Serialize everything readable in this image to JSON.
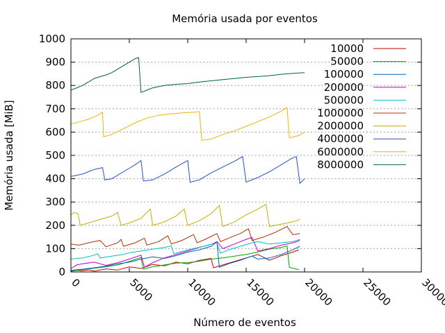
{
  "chart_data": {
    "type": "line",
    "title": "Memória usada por eventos",
    "xlabel": "Número de eventos",
    "ylabel": "Memória usada [MiB]",
    "xlim": [
      0,
      30000
    ],
    "ylim": [
      0,
      1000
    ],
    "xticks": [
      0,
      5000,
      10000,
      15000,
      20000,
      25000,
      30000
    ],
    "yticks": [
      0,
      100,
      200,
      300,
      400,
      500,
      600,
      700,
      800,
      900,
      1000
    ],
    "grid": "horizontal dotted",
    "legend_position": "top-right",
    "series": [
      {
        "name": "10000",
        "color": "#c00000",
        "points": [
          [
            0,
            3
          ],
          [
            500,
            7
          ],
          [
            1000,
            5
          ],
          [
            1500,
            9
          ],
          [
            2000,
            4
          ],
          [
            3000,
            13
          ],
          [
            4000,
            8
          ],
          [
            5000,
            22
          ],
          [
            6000,
            15
          ],
          [
            7000,
            32
          ],
          [
            8000,
            26
          ],
          [
            9000,
            42
          ],
          [
            10000,
            35
          ],
          [
            11000,
            50
          ],
          [
            12000,
            58
          ],
          [
            12200,
            18
          ],
          [
            13000,
            30
          ],
          [
            14000,
            45
          ],
          [
            15000,
            60
          ],
          [
            16000,
            75
          ],
          [
            17000,
            50
          ],
          [
            18000,
            70
          ],
          [
            19000,
            85
          ],
          [
            19500,
            95
          ]
        ]
      },
      {
        "name": "50000",
        "color": "#00a000",
        "points": [
          [
            0,
            4
          ],
          [
            1000,
            10
          ],
          [
            2000,
            16
          ],
          [
            3000,
            22
          ],
          [
            4000,
            30
          ],
          [
            5000,
            45
          ],
          [
            6000,
            62
          ],
          [
            6200,
            12
          ],
          [
            7000,
            22
          ],
          [
            8000,
            30
          ],
          [
            9000,
            38
          ],
          [
            10000,
            40
          ],
          [
            11000,
            46
          ],
          [
            12000,
            55
          ],
          [
            13000,
            60
          ],
          [
            14000,
            68
          ],
          [
            15000,
            75
          ],
          [
            16000,
            85
          ],
          [
            17000,
            98
          ],
          [
            18000,
            105
          ],
          [
            18500,
            112
          ],
          [
            18700,
            20
          ],
          [
            19500,
            10
          ]
        ]
      },
      {
        "name": "100000",
        "color": "#0060c0",
        "points": [
          [
            0,
            7
          ],
          [
            1000,
            12
          ],
          [
            2000,
            18
          ],
          [
            3000,
            25
          ],
          [
            4000,
            35
          ],
          [
            5000,
            42
          ],
          [
            6000,
            55
          ],
          [
            7000,
            65
          ],
          [
            8000,
            58
          ],
          [
            9000,
            70
          ],
          [
            10000,
            85
          ],
          [
            11000,
            95
          ],
          [
            12000,
            110
          ],
          [
            12500,
            128
          ],
          [
            12700,
            20
          ],
          [
            13500,
            35
          ],
          [
            14500,
            50
          ],
          [
            15500,
            68
          ],
          [
            16000,
            55
          ],
          [
            17000,
            60
          ],
          [
            18000,
            75
          ],
          [
            19000,
            95
          ],
          [
            19600,
            110
          ]
        ]
      },
      {
        "name": "200000",
        "color": "#c000c0",
        "points": [
          [
            0,
            15
          ],
          [
            500,
            30
          ],
          [
            1000,
            35
          ],
          [
            2000,
            42
          ],
          [
            3000,
            28
          ],
          [
            4000,
            40
          ],
          [
            5000,
            55
          ],
          [
            6000,
            72
          ],
          [
            6300,
            20
          ],
          [
            7000,
            40
          ],
          [
            8000,
            60
          ],
          [
            9000,
            75
          ],
          [
            10000,
            90
          ],
          [
            11000,
            105
          ],
          [
            12000,
            118
          ],
          [
            12500,
            130
          ],
          [
            13000,
            100
          ],
          [
            14000,
            120
          ],
          [
            15000,
            140
          ],
          [
            15500,
            148
          ],
          [
            16000,
            90
          ],
          [
            17000,
            100
          ],
          [
            18000,
            115
          ],
          [
            19000,
            125
          ],
          [
            19600,
            135
          ]
        ]
      },
      {
        "name": "500000",
        "color": "#00c0c0",
        "points": [
          [
            0,
            55
          ],
          [
            1000,
            60
          ],
          [
            2000,
            72
          ],
          [
            2300,
            78
          ],
          [
            2500,
            60
          ],
          [
            3500,
            68
          ],
          [
            4500,
            75
          ],
          [
            5000,
            82
          ],
          [
            6000,
            90
          ],
          [
            7000,
            98
          ],
          [
            8000,
            105
          ],
          [
            8600,
            112
          ],
          [
            8800,
            78
          ],
          [
            9500,
            88
          ],
          [
            10500,
            100
          ],
          [
            11500,
            112
          ],
          [
            12500,
            125
          ],
          [
            12800,
            80
          ],
          [
            13500,
            95
          ],
          [
            14500,
            110
          ],
          [
            15500,
            125
          ],
          [
            16000,
            130
          ],
          [
            17000,
            120
          ],
          [
            18000,
            125
          ],
          [
            19000,
            130
          ],
          [
            19600,
            140
          ]
        ]
      },
      {
        "name": "1000000",
        "color": "#b03000",
        "points": [
          [
            0,
            120
          ],
          [
            700,
            115
          ],
          [
            1500,
            125
          ],
          [
            2000,
            130
          ],
          [
            2500,
            135
          ],
          [
            3000,
            108
          ],
          [
            4000,
            125
          ],
          [
            4300,
            140
          ],
          [
            4500,
            110
          ],
          [
            5500,
            125
          ],
          [
            6300,
            145
          ],
          [
            6500,
            115
          ],
          [
            7500,
            130
          ],
          [
            8300,
            155
          ],
          [
            8600,
            120
          ],
          [
            9500,
            135
          ],
          [
            10500,
            160
          ],
          [
            10800,
            125
          ],
          [
            11500,
            140
          ],
          [
            12500,
            165
          ],
          [
            12800,
            130
          ],
          [
            13500,
            145
          ],
          [
            14500,
            165
          ],
          [
            15200,
            185
          ],
          [
            15500,
            135
          ],
          [
            16500,
            150
          ],
          [
            17500,
            170
          ],
          [
            18500,
            195
          ],
          [
            19000,
            160
          ],
          [
            19600,
            165
          ]
        ]
      },
      {
        "name": "2000000",
        "color": "#c0b000",
        "points": [
          [
            0,
            245
          ],
          [
            300,
            255
          ],
          [
            600,
            250
          ],
          [
            800,
            200
          ],
          [
            1500,
            210
          ],
          [
            2500,
            225
          ],
          [
            3500,
            240
          ],
          [
            4000,
            255
          ],
          [
            4300,
            200
          ],
          [
            5000,
            210
          ],
          [
            6000,
            230
          ],
          [
            6800,
            270
          ],
          [
            7000,
            200
          ],
          [
            8000,
            215
          ],
          [
            9000,
            240
          ],
          [
            9700,
            270
          ],
          [
            10000,
            200
          ],
          [
            11000,
            220
          ],
          [
            12000,
            250
          ],
          [
            12700,
            285
          ],
          [
            13000,
            195
          ],
          [
            14000,
            215
          ],
          [
            15000,
            245
          ],
          [
            16000,
            270
          ],
          [
            16700,
            290
          ],
          [
            17000,
            195
          ],
          [
            18000,
            205
          ],
          [
            19000,
            215
          ],
          [
            19600,
            225
          ]
        ]
      },
      {
        "name": "4000000",
        "color": "#2050c0",
        "points": [
          [
            0,
            410
          ],
          [
            500,
            415
          ],
          [
            1000,
            420
          ],
          [
            1500,
            430
          ],
          [
            2000,
            440
          ],
          [
            2500,
            445
          ],
          [
            2700,
            448
          ],
          [
            2900,
            395
          ],
          [
            3500,
            400
          ],
          [
            4000,
            415
          ],
          [
            4500,
            430
          ],
          [
            5000,
            445
          ],
          [
            5500,
            460
          ],
          [
            6000,
            478
          ],
          [
            6200,
            390
          ],
          [
            7000,
            395
          ],
          [
            8000,
            420
          ],
          [
            9000,
            450
          ],
          [
            10000,
            478
          ],
          [
            10200,
            385
          ],
          [
            11000,
            395
          ],
          [
            12000,
            425
          ],
          [
            13000,
            450
          ],
          [
            14000,
            475
          ],
          [
            14700,
            495
          ],
          [
            15000,
            385
          ],
          [
            16000,
            405
          ],
          [
            17000,
            430
          ],
          [
            18000,
            460
          ],
          [
            19000,
            490
          ],
          [
            19300,
            495
          ],
          [
            19600,
            380
          ],
          [
            20000,
            400
          ]
        ]
      },
      {
        "name": "6000000",
        "color": "#e8b800",
        "points": [
          [
            0,
            635
          ],
          [
            800,
            645
          ],
          [
            1500,
            655
          ],
          [
            2200,
            670
          ],
          [
            2700,
            685
          ],
          [
            2800,
            580
          ],
          [
            3500,
            590
          ],
          [
            4500,
            615
          ],
          [
            5500,
            640
          ],
          [
            6500,
            660
          ],
          [
            7500,
            672
          ],
          [
            8500,
            678
          ],
          [
            9500,
            682
          ],
          [
            10500,
            685
          ],
          [
            11000,
            688
          ],
          [
            11200,
            565
          ],
          [
            12000,
            570
          ],
          [
            13000,
            590
          ],
          [
            14000,
            605
          ],
          [
            15000,
            625
          ],
          [
            16000,
            645
          ],
          [
            17000,
            665
          ],
          [
            18000,
            690
          ],
          [
            18500,
            705
          ],
          [
            18700,
            575
          ],
          [
            19500,
            585
          ],
          [
            20000,
            600
          ]
        ]
      },
      {
        "name": "8000000",
        "color": "#006040",
        "points": [
          [
            0,
            780
          ],
          [
            500,
            790
          ],
          [
            1000,
            800
          ],
          [
            1500,
            815
          ],
          [
            2000,
            830
          ],
          [
            2500,
            838
          ],
          [
            3000,
            845
          ],
          [
            3500,
            855
          ],
          [
            4000,
            870
          ],
          [
            4500,
            885
          ],
          [
            5000,
            900
          ],
          [
            5500,
            915
          ],
          [
            5800,
            920
          ],
          [
            6000,
            770
          ],
          [
            6500,
            780
          ],
          [
            7000,
            790
          ],
          [
            8000,
            800
          ],
          [
            9000,
            805
          ],
          [
            10000,
            808
          ],
          [
            11000,
            815
          ],
          [
            12000,
            820
          ],
          [
            13000,
            825
          ],
          [
            14000,
            830
          ],
          [
            15000,
            835
          ],
          [
            16000,
            838
          ],
          [
            17000,
            842
          ],
          [
            18000,
            848
          ],
          [
            19000,
            852
          ],
          [
            20000,
            855
          ]
        ]
      }
    ]
  }
}
